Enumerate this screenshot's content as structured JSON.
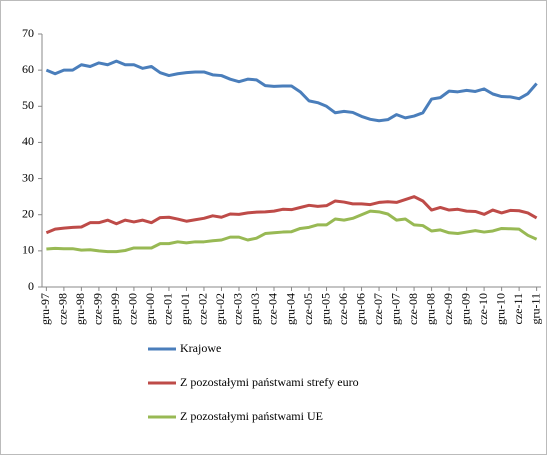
{
  "chart_data": {
    "type": "line",
    "categories": [
      "gru-97",
      null,
      "cze-98",
      null,
      "gru-98",
      null,
      "cze-99",
      null,
      "gru-99",
      null,
      "cze-00",
      null,
      "gru-00",
      null,
      "cze-01",
      null,
      "gru-01",
      null,
      "cze-02",
      null,
      "gru-02",
      null,
      "cze-03",
      null,
      "gru-03",
      null,
      "cze-04",
      null,
      "gru-04",
      null,
      "cze-05",
      null,
      "gru-05",
      null,
      "cze-06",
      null,
      "gru-06",
      null,
      "cze-07",
      null,
      "gru-07",
      null,
      "cze-08",
      null,
      "gru-08",
      null,
      "cze-09",
      null,
      "gru-09",
      null,
      "cze-10",
      null,
      "gru-10",
      null,
      "cze-11",
      null,
      "gru-11"
    ],
    "series": [
      {
        "name": "Krajowe",
        "color": "#4a7ebb",
        "values": [
          60,
          59,
          60,
          60,
          61.5,
          61,
          62,
          61.5,
          62.5,
          61.5,
          61.5,
          60.5,
          61,
          59.3,
          58.5,
          59,
          59.3,
          59.5,
          59.5,
          58.7,
          58.5,
          57.5,
          56.8,
          57.5,
          57.3,
          55.7,
          55.5,
          55.6,
          55.6,
          54,
          51.5,
          51,
          50,
          48.2,
          48.6,
          48.3,
          47.2,
          46.4,
          46,
          46.3,
          47.7,
          46.8,
          47.3,
          48.2,
          52,
          52.4,
          54.2,
          54,
          54.4,
          54.1,
          54.8,
          53.4,
          52.7,
          52.6,
          52.1,
          53.5,
          56.3
        ]
      },
      {
        "name": "Z pozostałymi państwami strefy euro",
        "color": "#be4b48",
        "values": [
          15,
          16,
          16.3,
          16.5,
          16.6,
          17.8,
          17.8,
          18.5,
          17.5,
          18.5,
          18,
          18.5,
          17.8,
          19.2,
          19.3,
          18.8,
          18.2,
          18.6,
          19,
          19.7,
          19.3,
          20.2,
          20.1,
          20.5,
          20.7,
          20.8,
          21,
          21.5,
          21.4,
          22,
          22.6,
          22.3,
          22.5,
          23.8,
          23.5,
          23,
          23,
          22.8,
          23.4,
          23.6,
          23.4,
          24.2,
          25,
          23.8,
          21.3,
          22,
          21.3,
          21.5,
          21,
          20.9,
          20.1,
          21.3,
          20.5,
          21.2,
          21.1,
          20.5,
          19.1
        ]
      },
      {
        "name": "Z pozostałymi państwami UE",
        "color": "#98b954",
        "values": [
          10.5,
          10.7,
          10.6,
          10.6,
          10.2,
          10.3,
          10,
          9.8,
          9.8,
          10.1,
          10.8,
          10.8,
          10.8,
          12,
          12,
          12.5,
          12.2,
          12.5,
          12.5,
          12.8,
          13,
          13.8,
          13.8,
          13,
          13.5,
          14.8,
          15,
          15.2,
          15.3,
          16.2,
          16.5,
          17.2,
          17.2,
          18.8,
          18.5,
          19,
          20,
          21,
          20.8,
          20.2,
          18.5,
          18.8,
          17.2,
          17,
          15.5,
          15.8,
          15,
          14.8,
          15.2,
          15.6,
          15.2,
          15.5,
          16.2,
          16.1,
          16,
          14.3,
          13.2
        ]
      }
    ],
    "ylim": [
      0,
      70
    ],
    "yticks": [
      0,
      10,
      20,
      30,
      40,
      50,
      60,
      70
    ],
    "grid": false,
    "legend": "bottom"
  }
}
